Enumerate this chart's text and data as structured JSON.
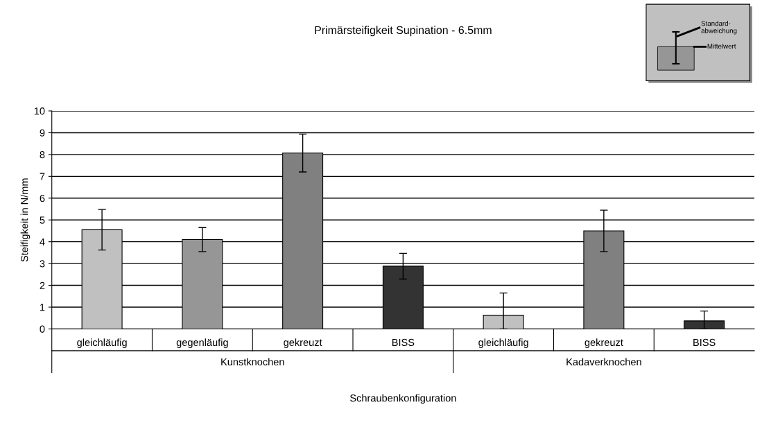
{
  "chart_data": {
    "type": "bar",
    "title": "Primärsteifigkeit Supination - 6.5mm",
    "xlabel": "Schraubenkonfiguration",
    "ylabel": "Steifigkeit in N/mm",
    "categories": [
      "gleichläufig",
      "gegenläufig",
      "gekreuzt",
      "BISS",
      "gleichläufig",
      "gekreuzt",
      "BISS"
    ],
    "values": [
      4.55,
      4.1,
      8.07,
      2.88,
      0.63,
      4.5,
      0.37
    ],
    "colors": [
      "#c0c0c0",
      "#969696",
      "#808080",
      "#333333",
      "#c0c0c0",
      "#808080",
      "#333333"
    ],
    "errors": [
      0.93,
      0.55,
      0.87,
      0.59,
      [
        0,
        1.65
      ],
      0.95,
      [
        0,
        0.82
      ]
    ],
    "ylim": [
      0,
      10
    ],
    "yticks": [
      0,
      1,
      2,
      3,
      4,
      5,
      6,
      7,
      8,
      9,
      10
    ],
    "grid": "y",
    "annotations": [
      "Kunstknochen",
      "Kadaverknochen",
      "Standard-\nabweichung",
      "Mittelwert"
    ]
  }
}
